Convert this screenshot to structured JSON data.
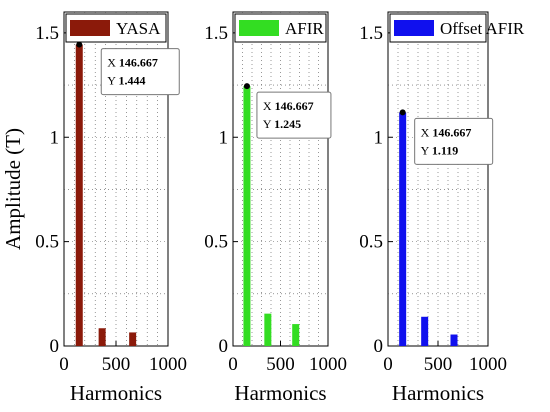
{
  "chart_data": [
    {
      "type": "bar",
      "xlabel": "Harmonics",
      "ylabel": "Amplitude (T)",
      "xlim": [
        0,
        1000
      ],
      "ylim": [
        0,
        1.6
      ],
      "xticks": [
        "0",
        "500",
        "1000"
      ],
      "yticks": [
        "0",
        "0.5",
        "1",
        "1.5"
      ],
      "grid": true,
      "legend_position": "top",
      "series": [
        {
          "name": "YASA",
          "color": "#8b1a0a",
          "x": [
            146.667,
            366.667,
            660
          ],
          "values": [
            1.444,
            0.085,
            0.065
          ]
        }
      ],
      "annotation": {
        "x_label": "X",
        "x_value": "146.667",
        "y_label": "Y",
        "y_value": "1.444",
        "x": 146.667,
        "y": 1.444
      }
    },
    {
      "type": "bar",
      "xlabel": "Harmonics",
      "ylabel": "",
      "xlim": [
        0,
        1000
      ],
      "ylim": [
        0,
        1.6
      ],
      "xticks": [
        "0",
        "500",
        "1000"
      ],
      "yticks": [
        "0",
        "0.5",
        "1",
        "1.5"
      ],
      "grid": true,
      "legend_position": "top",
      "series": [
        {
          "name": "AFIR",
          "color": "#33dd22",
          "x": [
            146.667,
            366.667,
            660
          ],
          "values": [
            1.245,
            0.155,
            0.105
          ]
        }
      ],
      "annotation": {
        "x_label": "X",
        "x_value": "146.667",
        "y_label": "Y",
        "y_value": "1.245",
        "x": 146.667,
        "y": 1.245
      }
    },
    {
      "type": "bar",
      "xlabel": "Harmonics",
      "ylabel": "",
      "xlim": [
        0,
        1000
      ],
      "ylim": [
        0,
        1.6
      ],
      "xticks": [
        "0",
        "500",
        "1000"
      ],
      "yticks": [
        "0",
        "0.5",
        "1",
        "1.5"
      ],
      "grid": true,
      "legend_position": "top",
      "series": [
        {
          "name": "Offset AFIR",
          "color": "#1010ee",
          "x": [
            146.667,
            366.667,
            660
          ],
          "values": [
            1.119,
            0.14,
            0.055
          ]
        }
      ],
      "annotation": {
        "x_label": "X",
        "x_value": "146.667",
        "y_label": "Y",
        "y_value": "1.119",
        "x": 146.667,
        "y": 1.119
      }
    }
  ]
}
